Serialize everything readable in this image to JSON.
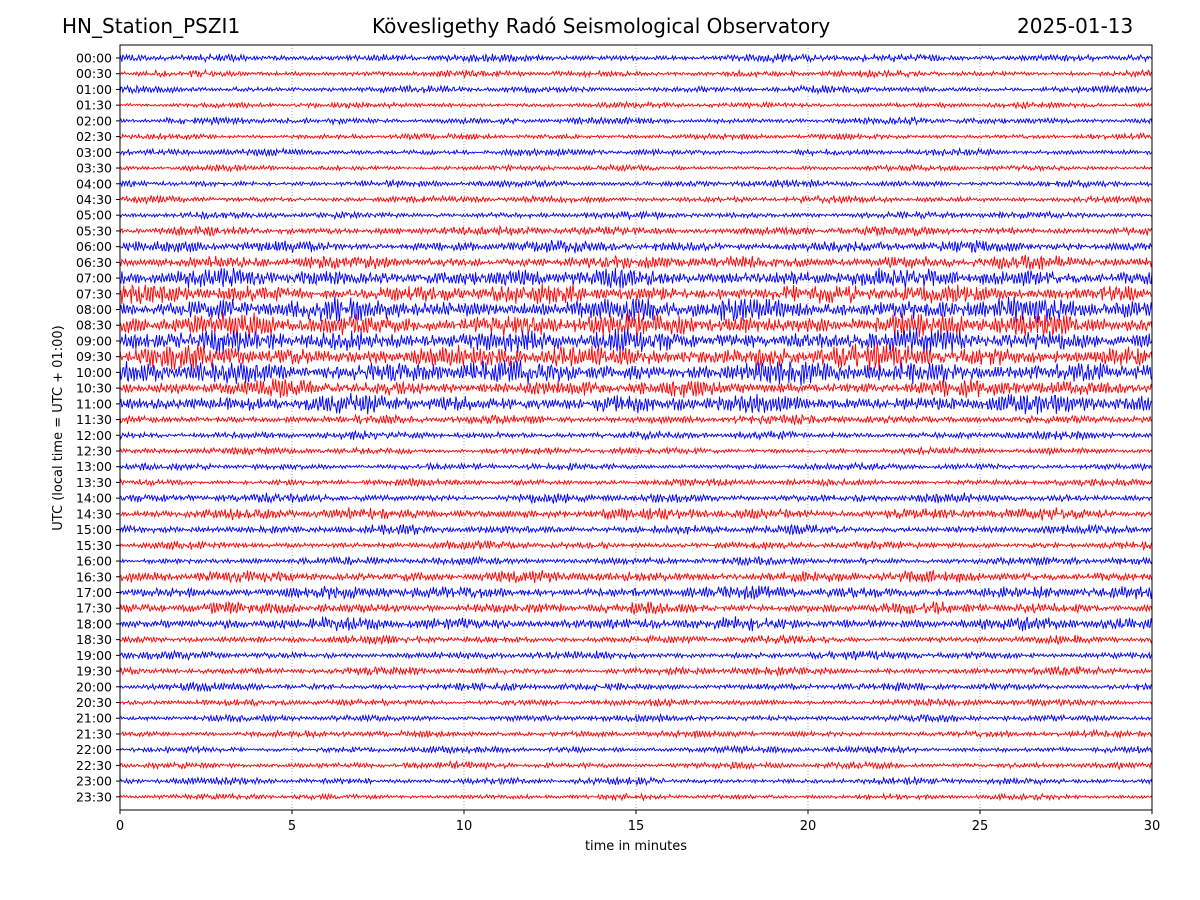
{
  "header": {
    "station": "HN_Station_PSZI1",
    "observatory": "Kövesligethy Radó Seismological Observatory",
    "date": "2025-01-13"
  },
  "chart_data": {
    "type": "line",
    "title": "Kövesligethy Radó Seismological Observatory",
    "xlabel": "time in minutes",
    "ylabel": "UTC (local time = UTC + 01:00)",
    "xlim": [
      0,
      30
    ],
    "xticks": [
      0,
      5,
      10,
      15,
      20,
      25,
      30
    ],
    "xtick_labels": [
      "0",
      "5",
      "10",
      "15",
      "20",
      "25",
      "30"
    ],
    "grid": "vertical dotted lines at x ticks",
    "row_labels": [
      "00:00",
      "00:30",
      "01:00",
      "01:30",
      "02:00",
      "02:30",
      "03:00",
      "03:30",
      "04:00",
      "04:30",
      "05:00",
      "05:30",
      "06:00",
      "06:30",
      "07:00",
      "07:30",
      "08:00",
      "08:30",
      "09:00",
      "09:30",
      "10:00",
      "10:30",
      "11:00",
      "11:30",
      "12:00",
      "12:30",
      "13:00",
      "13:30",
      "14:00",
      "14:30",
      "15:00",
      "15:30",
      "16:00",
      "16:30",
      "17:00",
      "17:30",
      "18:00",
      "18:30",
      "19:00",
      "19:30",
      "20:00",
      "20:30",
      "21:00",
      "21:30",
      "22:00",
      "22:30",
      "23:00",
      "23:30"
    ],
    "colors": {
      "even_rows": "#0000ff",
      "odd_rows": "#ff0000"
    },
    "row_amplitudes": [
      0.35,
      0.3,
      0.3,
      0.25,
      0.3,
      0.25,
      0.3,
      0.25,
      0.3,
      0.3,
      0.3,
      0.4,
      0.5,
      0.6,
      0.8,
      0.8,
      1.0,
      1.0,
      1.0,
      1.0,
      1.0,
      0.7,
      0.8,
      0.4,
      0.35,
      0.3,
      0.3,
      0.3,
      0.4,
      0.5,
      0.4,
      0.35,
      0.35,
      0.5,
      0.55,
      0.5,
      0.55,
      0.35,
      0.35,
      0.35,
      0.35,
      0.3,
      0.3,
      0.3,
      0.3,
      0.3,
      0.3,
      0.25
    ]
  }
}
